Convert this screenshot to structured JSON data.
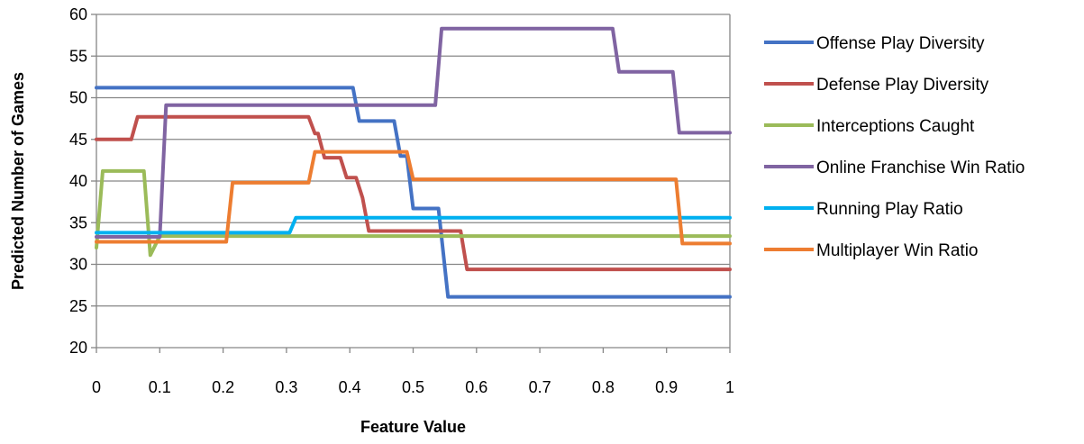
{
  "chart_data": {
    "type": "line",
    "title": "",
    "xlabel": "Feature Value",
    "ylabel": "Predicted Number of Games",
    "xlim": [
      0,
      1
    ],
    "ylim": [
      20,
      60
    ],
    "x_ticks": [
      "0",
      "0.1",
      "0.2",
      "0.3",
      "0.4",
      "0.5",
      "0.6",
      "0.7",
      "0.8",
      "0.9",
      "1"
    ],
    "y_ticks": [
      "20",
      "25",
      "30",
      "35",
      "40",
      "45",
      "50",
      "55",
      "60"
    ],
    "grid": "horizontal",
    "legend_position": "right",
    "series": [
      {
        "name": "Offense Play Diversity",
        "color": "#4472C4",
        "points": [
          [
            0,
            51.2
          ],
          [
            0.405,
            51.2
          ],
          [
            0.415,
            47.2
          ],
          [
            0.47,
            47.2
          ],
          [
            0.48,
            43
          ],
          [
            0.49,
            43
          ],
          [
            0.5,
            36.7
          ],
          [
            0.54,
            36.7
          ],
          [
            0.555,
            26.1
          ],
          [
            1,
            26.1
          ]
        ]
      },
      {
        "name": "Defense Play Diversity",
        "color": "#C0504D",
        "points": [
          [
            0,
            45
          ],
          [
            0.055,
            45
          ],
          [
            0.065,
            47.7
          ],
          [
            0.335,
            47.7
          ],
          [
            0.345,
            45.7
          ],
          [
            0.35,
            45.7
          ],
          [
            0.36,
            42.8
          ],
          [
            0.385,
            42.8
          ],
          [
            0.395,
            40.4
          ],
          [
            0.41,
            40.4
          ],
          [
            0.42,
            38
          ],
          [
            0.43,
            34
          ],
          [
            0.575,
            34
          ],
          [
            0.585,
            29.4
          ],
          [
            1,
            29.4
          ]
        ]
      },
      {
        "name": "Interceptions Caught",
        "color": "#9BBB59",
        "points": [
          [
            0,
            32
          ],
          [
            0.01,
            41.2
          ],
          [
            0.075,
            41.2
          ],
          [
            0.085,
            31.1
          ],
          [
            0.1,
            33.4
          ],
          [
            1,
            33.4
          ]
        ]
      },
      {
        "name": "Online Franchise Win Ratio",
        "color": "#8064A2",
        "points": [
          [
            0,
            33.3
          ],
          [
            0.1,
            33.3
          ],
          [
            0.11,
            49.1
          ],
          [
            0.535,
            49.1
          ],
          [
            0.545,
            58.3
          ],
          [
            0.815,
            58.3
          ],
          [
            0.825,
            53.1
          ],
          [
            0.91,
            53.1
          ],
          [
            0.92,
            45.8
          ],
          [
            1,
            45.8
          ]
        ]
      },
      {
        "name": "Running Play Ratio",
        "color": "#00B0F0",
        "points": [
          [
            0,
            33.8
          ],
          [
            0.305,
            33.8
          ],
          [
            0.315,
            35.6
          ],
          [
            1,
            35.6
          ]
        ]
      },
      {
        "name": "Multiplayer Win Ratio",
        "color": "#ED7D31",
        "points": [
          [
            0,
            32.7
          ],
          [
            0.205,
            32.7
          ],
          [
            0.215,
            39.8
          ],
          [
            0.335,
            39.8
          ],
          [
            0.345,
            43.5
          ],
          [
            0.49,
            43.5
          ],
          [
            0.5,
            40.2
          ],
          [
            0.915,
            40.2
          ],
          [
            0.925,
            32.5
          ],
          [
            1,
            32.5
          ]
        ]
      }
    ]
  }
}
